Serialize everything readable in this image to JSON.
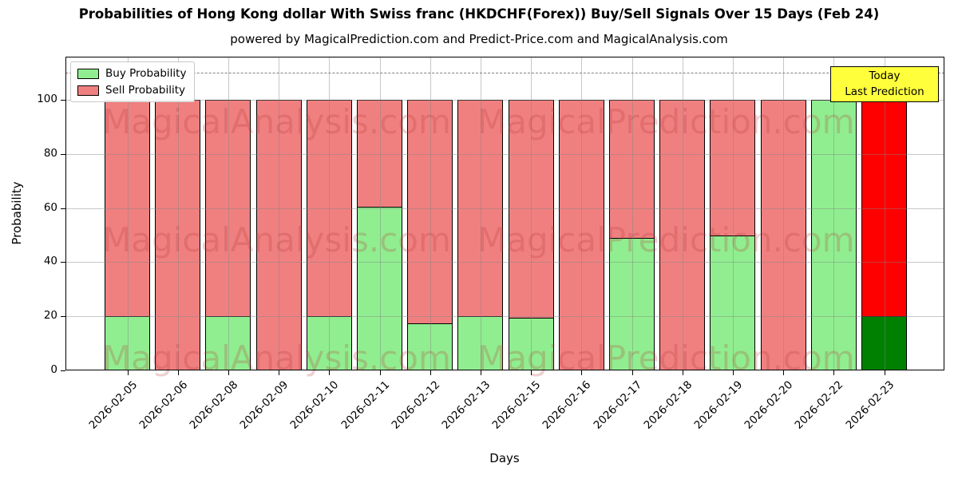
{
  "title": "Probabilities of Hong Kong dollar With Swiss franc (HKDCHF(Forex)) Buy/Sell Signals Over 15 Days (Feb 24)",
  "subtitle": "powered by MagicalPrediction.com and Predict-Price.com and MagicalAnalysis.com",
  "annotation": {
    "line1": "Today",
    "line2": "Last Prediction",
    "bg_color": "#ffff3c"
  },
  "watermark": {
    "left_text": "MagicalAnalysis.com",
    "right_text": "MagicalPrediction.com"
  },
  "colors": {
    "buy": "#90ee90",
    "sell": "#f08080",
    "today_buy": "#008000",
    "today_sell": "#ff0000",
    "bar_edge": "#000000",
    "grid": "#c8c8c8",
    "dashed_line": "#7f7f7f"
  },
  "chart_data": {
    "type": "bar",
    "stacked": true,
    "title": "Probabilities of Hong Kong dollar With Swiss franc (HKDCHF(Forex)) Buy/Sell Signals Over 15 Days (Feb 24)",
    "xlabel": "Days",
    "ylabel": "Probability",
    "categories": [
      "2026-02-05",
      "2026-02-06",
      "2026-02-08",
      "2026-02-09",
      "2026-02-10",
      "2026-02-11",
      "2026-02-12",
      "2026-02-13",
      "2026-02-15",
      "2026-02-16",
      "2026-02-17",
      "2026-02-18",
      "2026-02-19",
      "2026-02-20",
      "2026-02-22",
      "2026-02-23"
    ],
    "series": [
      {
        "name": "Buy Probability",
        "color": "#90ee90",
        "values": [
          20,
          0,
          20,
          0,
          20,
          60.5,
          17.5,
          20,
          19.5,
          0,
          49,
          0,
          50,
          0,
          100,
          20
        ]
      },
      {
        "name": "Sell Probability",
        "color": "#f08080",
        "values": [
          80,
          100,
          80,
          100,
          80,
          39.5,
          82.5,
          80,
          80.5,
          100,
          51,
          100,
          50,
          100,
          0,
          80
        ]
      }
    ],
    "today_index": 15,
    "today_colors": {
      "buy": "#008000",
      "sell": "#ff0000"
    },
    "ylim": [
      0,
      116
    ],
    "yticks": [
      0,
      20,
      40,
      60,
      80,
      100
    ],
    "dashed_line_y": 110,
    "grid": true,
    "legend_position": "upper left"
  }
}
